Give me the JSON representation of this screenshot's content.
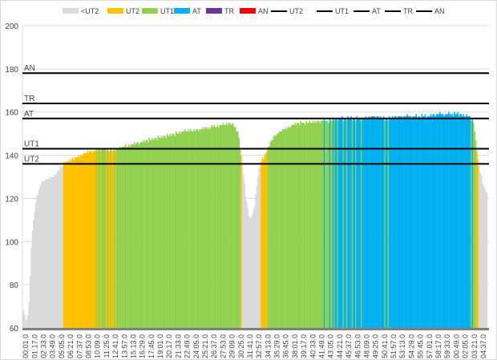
{
  "chart_data": {
    "type": "area",
    "title": "",
    "xlabel": "",
    "ylabel": "",
    "ylim": [
      60,
      200
    ],
    "yticks": [
      60,
      80,
      100,
      120,
      140,
      160,
      180,
      200
    ],
    "grid": {
      "horizontal": true,
      "vertical": false
    },
    "legend_position": "top",
    "legend": [
      {
        "label": "<UT2",
        "color": "#d9d9d9",
        "kind": "area"
      },
      {
        "label": "UT2",
        "color": "#ffc000",
        "kind": "area"
      },
      {
        "label": "UT1",
        "color": "#92d050",
        "kind": "area"
      },
      {
        "label": "AT",
        "color": "#00b0f0",
        "kind": "area"
      },
      {
        "label": "TR",
        "color": "#7030a0",
        "kind": "area"
      },
      {
        "label": "AN",
        "color": "#ff0000",
        "kind": "area"
      },
      {
        "label": "UT2",
        "color": "#000000",
        "kind": "line"
      },
      {
        "label": "UT1",
        "color": "#000000",
        "kind": "line"
      },
      {
        "label": "AT",
        "color": "#000000",
        "kind": "line"
      },
      {
        "label": "TR",
        "color": "#000000",
        "kind": "line"
      },
      {
        "label": "AN",
        "color": "#000000",
        "kind": "line"
      }
    ],
    "thresholds": [
      {
        "label": "AN",
        "value": 178
      },
      {
        "label": "TR",
        "value": 164
      },
      {
        "label": "AT",
        "value": 157
      },
      {
        "label": "UT1",
        "value": 143
      },
      {
        "label": "UT2",
        "value": 136
      }
    ],
    "zone_colors": {
      "below_ut2": "#d9d9d9",
      "ut2": "#ffc000",
      "ut1": "#92d050",
      "at": "#00b0f0",
      "tr": "#7030a0",
      "an": "#ff0000"
    },
    "x_tick_labels": [
      "00:01.0",
      "01:17.0",
      "02:33.0",
      "03:49.0",
      "05:05.0",
      "06:21.0",
      "07:37.0",
      "08:53.0",
      "10:09.0",
      "11:25.0",
      "12:41.0",
      "13:57.0",
      "15:13.0",
      "16:29.0",
      "17:45.0",
      "19:01.0",
      "20:17.0",
      "21:33.0",
      "22:49.0",
      "24:05.0",
      "25:21.0",
      "26:37.0",
      "27:53.0",
      "29:09.0",
      "30:25.0",
      "31:41.0",
      "32:57.0",
      "34:13.0",
      "35:29.0",
      "36:45.0",
      "38:01.0",
      "39:17.0",
      "40:33.0",
      "41:49.0",
      "43:05.0",
      "44:21.0",
      "45:37.0",
      "46:53.0",
      "48:09.0",
      "49:25.0",
      "50:41.0",
      "51:57.0",
      "53:13.0",
      "54:29.0",
      "55:45.0",
      "57:01.0",
      "58:17.0",
      "59:33.0",
      "00:49.0",
      "02:05.0",
      "03:21.0",
      "04:37.0"
    ],
    "series_profile": {
      "name": "Heart rate",
      "x_index": [
        0,
        0.3,
        0.6,
        1,
        1.4,
        2,
        2.6,
        3.2,
        3.6,
        4,
        4.5,
        5,
        6,
        7,
        8,
        9,
        10,
        11,
        12,
        14,
        16,
        18,
        20,
        22,
        23,
        23.5,
        24,
        24.5,
        24.9,
        25.3,
        25.8,
        26.2,
        26.6,
        27.0,
        27.5,
        28,
        29,
        30,
        31,
        32,
        33,
        34,
        35,
        36,
        37,
        38,
        39,
        40,
        41,
        42,
        43,
        44,
        45,
        46,
        47,
        48,
        49,
        49.7,
        50.2,
        50.7,
        51.2,
        51.6,
        51.9
      ],
      "values": [
        69,
        63,
        66,
        104,
        118,
        127,
        129,
        130,
        131,
        133,
        136,
        137,
        139,
        141,
        142,
        143,
        142,
        144,
        145,
        147,
        149,
        151,
        152,
        154,
        155,
        154,
        150,
        133,
        118,
        110,
        116,
        131,
        138,
        140,
        145,
        149,
        152,
        154,
        155,
        155,
        156,
        156,
        157,
        157,
        157,
        157,
        158,
        157,
        157,
        158,
        158,
        158,
        158,
        159,
        159,
        159,
        159,
        158,
        156,
        138,
        128,
        123,
        121
      ]
    }
  }
}
